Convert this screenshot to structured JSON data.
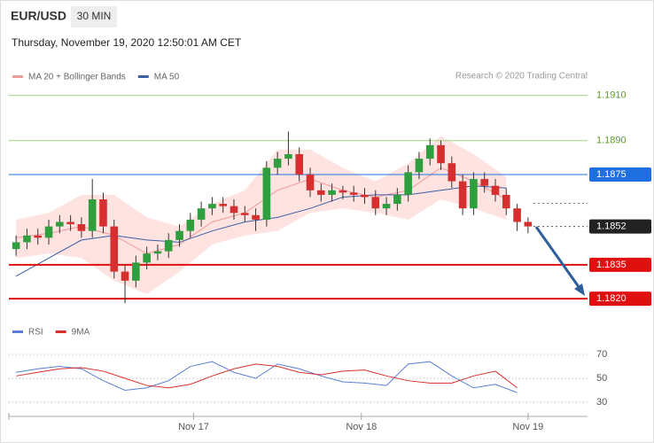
{
  "header": {
    "symbol": "EUR/USD",
    "timeframe": "30 MIN",
    "timestamp": "Thursday, November 19, 2020 12:50:01 AM CET",
    "credit": "Research © 2020 Trading Central"
  },
  "chart_data": {
    "type": "candlestick",
    "legend": [
      {
        "name": "MA 20 + Bollinger Bands",
        "color": "#f09a9a"
      },
      {
        "name": "MA 50",
        "color": "#3b5ea8"
      }
    ],
    "up_color": "#2e9e3e",
    "down_color": "#d62f2f",
    "open": [
      1.1842,
      1.1845,
      1.1848,
      1.1847,
      1.1852,
      1.1854,
      1.1853,
      1.185,
      1.1864,
      1.1852,
      1.1832,
      1.1828,
      1.1836,
      1.184,
      1.1841,
      1.1846,
      1.185,
      1.1855,
      1.186,
      1.1862,
      1.1861,
      1.1858,
      1.1857,
      1.1855,
      1.1878,
      1.1882,
      1.1884,
      1.1875,
      1.1868,
      1.1866,
      1.1868,
      1.1867,
      1.1866,
      1.1865,
      1.186,
      1.1862,
      1.1866,
      1.1876,
      1.1882,
      1.1888,
      1.188,
      1.1872,
      1.186,
      1.1873,
      1.187,
      1.1866,
      1.186,
      1.1854
    ],
    "high": [
      1.1848,
      1.1851,
      1.1851,
      1.1855,
      1.1857,
      1.1857,
      1.1856,
      1.1873,
      1.1867,
      1.1855,
      1.1835,
      1.1839,
      1.1843,
      1.1844,
      1.1849,
      1.1853,
      1.1858,
      1.1863,
      1.1865,
      1.1865,
      1.1864,
      1.1861,
      1.186,
      1.1881,
      1.1885,
      1.1894,
      1.1887,
      1.1878,
      1.1871,
      1.1871,
      1.187,
      1.187,
      1.1869,
      1.1868,
      1.1865,
      1.1869,
      1.1879,
      1.1885,
      1.1891,
      1.189,
      1.1883,
      1.1875,
      1.1876,
      1.1876,
      1.1873,
      1.1869,
      1.1862,
      1.1856
    ],
    "low": [
      1.1839,
      1.1842,
      1.1844,
      1.1844,
      1.1849,
      1.185,
      1.1847,
      1.1847,
      1.1849,
      1.1829,
      1.1818,
      1.1825,
      1.1833,
      1.1837,
      1.1838,
      1.1843,
      1.1847,
      1.1852,
      1.1857,
      1.1858,
      1.1855,
      1.1854,
      1.185,
      1.1852,
      1.1875,
      1.1879,
      1.1872,
      1.1865,
      1.1863,
      1.1863,
      1.1864,
      1.1863,
      1.1862,
      1.1857,
      1.1857,
      1.1859,
      1.1863,
      1.1873,
      1.1879,
      1.1877,
      1.1869,
      1.1857,
      1.1857,
      1.1867,
      1.1863,
      1.1857,
      1.185,
      1.1849
    ],
    "close": [
      1.1845,
      1.1848,
      1.1847,
      1.1852,
      1.1854,
      1.1853,
      1.185,
      1.1864,
      1.1852,
      1.1832,
      1.1828,
      1.1836,
      1.184,
      1.1841,
      1.1846,
      1.185,
      1.1855,
      1.186,
      1.1862,
      1.1861,
      1.1858,
      1.1857,
      1.1855,
      1.1878,
      1.1882,
      1.1884,
      1.1875,
      1.1868,
      1.1866,
      1.1868,
      1.1867,
      1.1866,
      1.1865,
      1.186,
      1.1862,
      1.1866,
      1.1876,
      1.1882,
      1.1888,
      1.188,
      1.1872,
      1.186,
      1.1873,
      1.187,
      1.1866,
      1.186,
      1.1854,
      1.1852
    ],
    "ma_index": [
      0,
      3,
      6,
      9,
      12,
      15,
      18,
      21,
      24,
      27,
      30,
      33,
      36,
      39,
      42,
      45
    ],
    "ma20": [
      1.1847,
      1.1849,
      1.1852,
      1.1848,
      1.184,
      1.1844,
      1.1854,
      1.1858,
      1.1868,
      1.1873,
      1.1868,
      1.1865,
      1.1868,
      1.1878,
      1.1872,
      1.1864
    ],
    "ma50": [
      1.183,
      1.1838,
      1.1846,
      1.1848,
      1.1846,
      1.1845,
      1.185,
      1.1854,
      1.1856,
      1.186,
      1.1865,
      1.1866,
      1.1866,
      1.1868,
      1.187,
      1.1869
    ],
    "bb_upper": [
      1.1855,
      1.1858,
      1.1866,
      1.1866,
      1.1856,
      1.1852,
      1.1862,
      1.1868,
      1.1886,
      1.1886,
      1.1878,
      1.1872,
      1.188,
      1.1892,
      1.1884,
      1.1874
    ],
    "bb_lower": [
      1.1838,
      1.184,
      1.1838,
      1.1828,
      1.1822,
      1.1832,
      1.1844,
      1.1848,
      1.185,
      1.1858,
      1.186,
      1.1858,
      1.1855,
      1.1864,
      1.186,
      1.1855
    ],
    "ylim": [
      1.1813,
      1.1915
    ],
    "levels": [
      {
        "value": 1.191,
        "label": "1.1910",
        "color": "#5a9e1f",
        "style": "plain"
      },
      {
        "value": 1.189,
        "label": "1.1890",
        "color": "#5a9e1f",
        "style": "plain"
      },
      {
        "value": 1.1875,
        "label": "1.1875",
        "color": "#1f6fe0",
        "style": "box"
      },
      {
        "value": 1.1852,
        "label": "1.1852",
        "color": "#222222",
        "style": "current"
      },
      {
        "value": 1.1835,
        "label": "1.1835",
        "color": "#e01010",
        "style": "box"
      },
      {
        "value": 1.182,
        "label": "1.1820",
        "color": "#e01010",
        "style": "box"
      }
    ],
    "xticks": [
      {
        "value": 16.3,
        "label": "Nov 17"
      },
      {
        "value": 31.7,
        "label": "Nov 18"
      },
      {
        "value": 47,
        "label": "Nov 19"
      }
    ],
    "rsi": {
      "legend": [
        {
          "name": "RSI",
          "color": "#5b7fd6"
        },
        {
          "name": "9MA",
          "color": "#d62f2f"
        }
      ],
      "index": [
        0,
        2,
        4,
        6,
        8,
        10,
        12,
        14,
        16,
        18,
        20,
        22,
        24,
        26,
        28,
        30,
        32,
        34,
        36,
        38,
        40,
        42,
        44,
        46
      ],
      "rsi": [
        55,
        58,
        60,
        58,
        48,
        40,
        42,
        48,
        60,
        64,
        55,
        50,
        62,
        58,
        52,
        47,
        46,
        44,
        62,
        64,
        52,
        42,
        45,
        38
      ],
      "ma9": [
        52,
        55,
        58,
        59,
        56,
        50,
        44,
        42,
        45,
        52,
        58,
        62,
        60,
        55,
        53,
        56,
        57,
        52,
        48,
        46,
        46,
        52,
        56,
        42
      ],
      "ylim": [
        21,
        79
      ],
      "yticks": [
        70,
        50,
        30
      ]
    }
  }
}
